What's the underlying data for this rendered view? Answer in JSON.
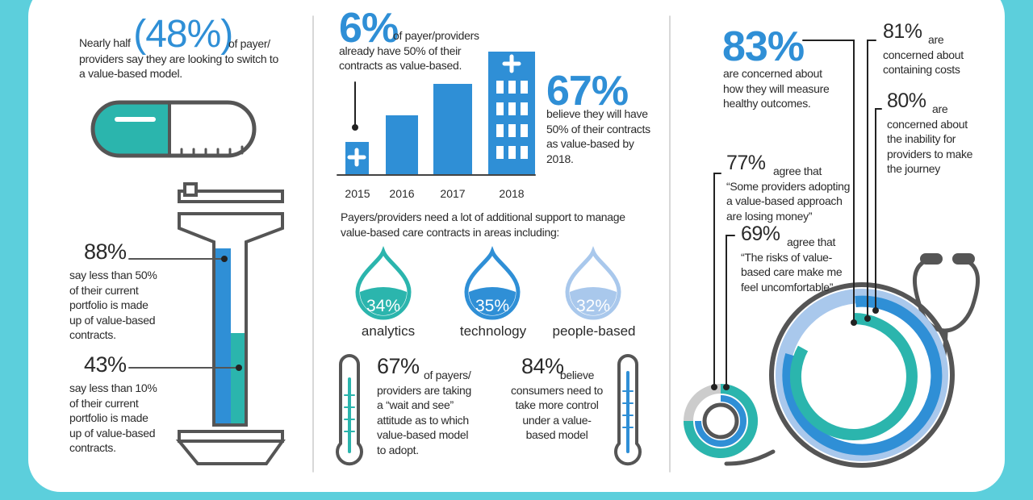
{
  "left": {
    "headline": {
      "pre": "Nearly half",
      "big": "(48%)",
      "post": "of payer/ providers say they are looking to switch to a value-based model."
    },
    "stat1": {
      "big": "88%",
      "text": "say less than 50% of their current portfolio is made up of value-based contracts."
    },
    "stat2": {
      "big": "43%",
      "text": "say less than 10% of their current portfolio is made up of value-based contracts."
    }
  },
  "middle": {
    "stat6": {
      "big": "6%",
      "text": "of payer/providers already have 50% of their contracts as value-based."
    },
    "stat67": {
      "big": "67%",
      "text": "believe they will have 50% of their contracts as value-based by 2018."
    },
    "years": [
      "2015",
      "2016",
      "2017",
      "2018"
    ],
    "support": "Payers/providers need a lot of additional support to manage value-based care contracts in areas including:",
    "drops": [
      {
        "value": "34%",
        "label": "analytics"
      },
      {
        "value": "35%",
        "label": "technology"
      },
      {
        "value": "32%",
        "label": "people-based"
      }
    ],
    "wait": {
      "big": "67%",
      "text": "of payers/ providers are taking a “wait and see” attitude as to which value-based model to adopt."
    },
    "control": {
      "big": "84%",
      "text": "believe consumers need to take more control under a value-based model"
    }
  },
  "right": {
    "stat83": {
      "big": "83%",
      "text": "are concerned about how they will measure healthy outcomes."
    },
    "stat81": {
      "big": "81%",
      "text": "are concerned about containing costs"
    },
    "stat80": {
      "big": "80%",
      "text": "are concerned about the inability for providers to make the journey"
    },
    "stat77": {
      "big": "77%",
      "text": "agree that “Some providers adopting a value-based approach are losing money”"
    },
    "stat69": {
      "big": "69%",
      "text": "agree that “The risks of value-based care make me feel uncomfortable”"
    }
  }
}
